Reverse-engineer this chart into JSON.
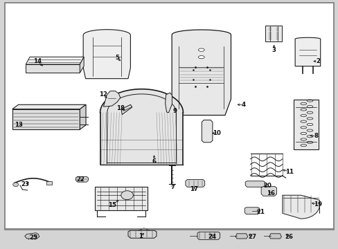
{
  "bg_color": "#d4d4d4",
  "inner_bg": "#d4d4d4",
  "border_color": "#555555",
  "line_color": "#1a1a1a",
  "text_color": "#111111",
  "fig_width": 4.89,
  "fig_height": 3.6,
  "dpi": 100,
  "label_info": {
    "1": [
      0.415,
      0.05,
      0.43,
      0.068
    ],
    "2": [
      0.94,
      0.755,
      0.92,
      0.755
    ],
    "3": [
      0.81,
      0.8,
      0.81,
      0.83
    ],
    "4": [
      0.72,
      0.58,
      0.695,
      0.58
    ],
    "5": [
      0.345,
      0.77,
      0.36,
      0.75
    ],
    "6": [
      0.455,
      0.35,
      0.455,
      0.385
    ],
    "7": [
      0.51,
      0.248,
      0.51,
      0.268
    ],
    "8": [
      0.935,
      0.455,
      0.91,
      0.455
    ],
    "9": [
      0.517,
      0.555,
      0.517,
      0.575
    ],
    "10": [
      0.64,
      0.465,
      0.62,
      0.465
    ],
    "11": [
      0.855,
      0.31,
      0.83,
      0.32
    ],
    "12": [
      0.305,
      0.62,
      0.32,
      0.6
    ],
    "13": [
      0.055,
      0.5,
      0.07,
      0.5
    ],
    "14": [
      0.11,
      0.755,
      0.13,
      0.73
    ],
    "15": [
      0.33,
      0.175,
      0.355,
      0.2
    ],
    "16": [
      0.8,
      0.222,
      0.79,
      0.235
    ],
    "17": [
      0.574,
      0.238,
      0.574,
      0.255
    ],
    "18": [
      0.355,
      0.565,
      0.375,
      0.555
    ],
    "19": [
      0.94,
      0.178,
      0.915,
      0.185
    ],
    "20": [
      0.79,
      0.253,
      0.775,
      0.26
    ],
    "21": [
      0.77,
      0.148,
      0.753,
      0.155
    ],
    "22": [
      0.238,
      0.278,
      0.25,
      0.27
    ],
    "23": [
      0.073,
      0.258,
      0.09,
      0.27
    ],
    "24": [
      0.626,
      0.047,
      0.626,
      0.06
    ],
    "25": [
      0.098,
      0.045,
      0.115,
      0.055
    ],
    "26": [
      0.855,
      0.047,
      0.84,
      0.06
    ],
    "27": [
      0.745,
      0.047,
      0.73,
      0.06
    ]
  }
}
